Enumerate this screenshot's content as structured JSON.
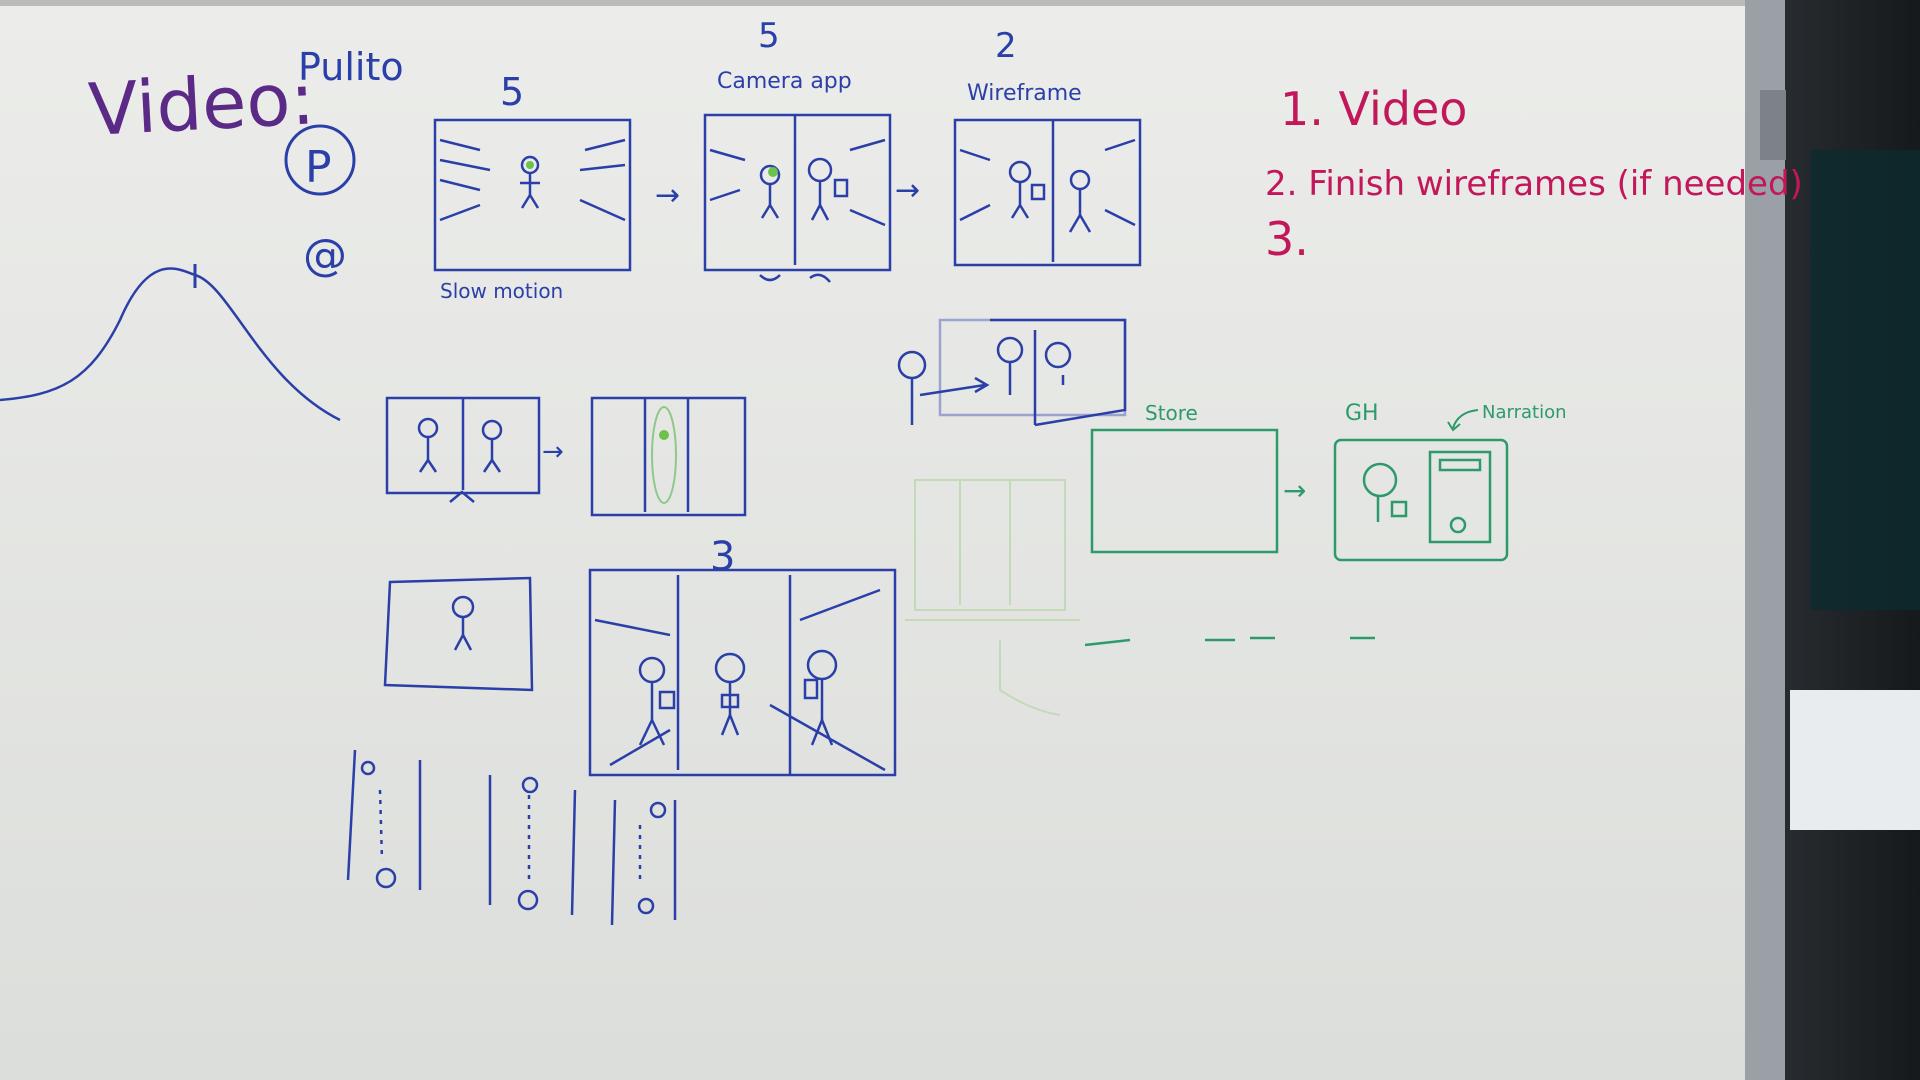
{
  "board": {
    "title": "Video:",
    "project": "Pulito",
    "list": {
      "item1": "1. Video",
      "item2": "2. Finish wireframes (if needed)",
      "item3": "3."
    },
    "frame_labels": {
      "slow_motion": "Slow motion",
      "camera_app": "Camera app",
      "wireframe": "Wireframe",
      "store": "Store",
      "gh": "GH",
      "narration": "Narration"
    },
    "numbers": {
      "top_left": "5",
      "top_mid": "5",
      "top_right": "2",
      "middle": "3"
    }
  },
  "colors": {
    "board": "#e9eae6",
    "blue_marker": "#2b3fa8",
    "purple_marker": "#5b2a86",
    "red_marker": "#c2185b",
    "green_marker": "#2e9a6b",
    "frame_metal": "#9aa0a6",
    "room_dark": "#1f2326"
  }
}
